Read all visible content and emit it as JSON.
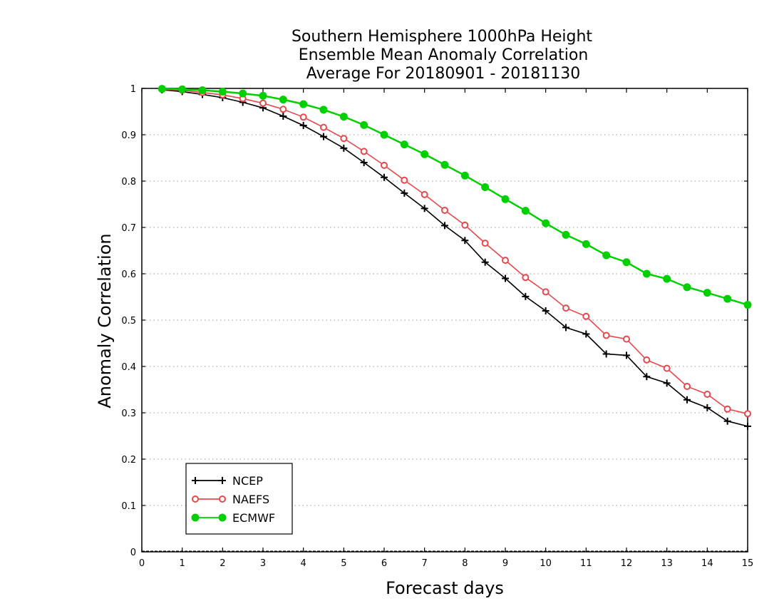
{
  "chart_data": {
    "type": "line",
    "title": [
      "Southern Hemisphere 1000hPa Height",
      "Ensemble Mean Anomaly Correlation",
      "Average For 20180901 - 20181130"
    ],
    "xlabel": "Forecast days",
    "ylabel": "Anomaly Correlation",
    "xlim": [
      0,
      15
    ],
    "ylim": [
      0,
      1
    ],
    "x_ticks": [
      "0",
      "1",
      "2",
      "3",
      "4",
      "5",
      "6",
      "7",
      "8",
      "9",
      "10",
      "11",
      "12",
      "13",
      "14",
      "15"
    ],
    "y_ticks": [
      "0",
      "0.1",
      "0.2",
      "0.3",
      "0.4",
      "0.5",
      "0.6",
      "0.7",
      "0.8",
      "0.9",
      "1"
    ],
    "grid": "horizontal dotted",
    "legend_position": "bottom-left",
    "x": [
      0.5,
      1,
      1.5,
      2,
      2.5,
      3,
      3.5,
      4,
      4.5,
      5,
      5.5,
      6,
      6.5,
      7,
      7.5,
      8,
      8.5,
      9,
      9.5,
      10,
      10.5,
      11,
      11.5,
      12,
      12.5,
      13,
      13.5,
      14,
      14.5,
      15
    ],
    "series": [
      {
        "name": "NCEP",
        "color": "#000000",
        "marker": "plus",
        "values": [
          0.997,
          0.993,
          0.987,
          0.98,
          0.97,
          0.958,
          0.94,
          0.92,
          0.896,
          0.871,
          0.84,
          0.808,
          0.774,
          0.741,
          0.704,
          0.672,
          0.625,
          0.59,
          0.551,
          0.52,
          0.484,
          0.47,
          0.427,
          0.424,
          0.378,
          0.364,
          0.328,
          0.311,
          0.282,
          0.271
        ]
      },
      {
        "name": "NAEFS",
        "color": "#e8474c",
        "marker": "open-circle",
        "values": [
          0.998,
          0.996,
          0.991,
          0.986,
          0.978,
          0.968,
          0.955,
          0.938,
          0.916,
          0.892,
          0.864,
          0.834,
          0.802,
          0.771,
          0.737,
          0.705,
          0.666,
          0.629,
          0.592,
          0.561,
          0.526,
          0.508,
          0.467,
          0.459,
          0.414,
          0.396,
          0.357,
          0.34,
          0.308,
          0.298
        ]
      },
      {
        "name": "ECMWF",
        "color": "#00d000",
        "marker": "filled-circle",
        "values": [
          0.999,
          0.998,
          0.996,
          0.993,
          0.989,
          0.984,
          0.976,
          0.966,
          0.954,
          0.939,
          0.921,
          0.9,
          0.879,
          0.858,
          0.835,
          0.812,
          0.787,
          0.761,
          0.736,
          0.709,
          0.684,
          0.664,
          0.64,
          0.625,
          0.6,
          0.589,
          0.571,
          0.559,
          0.546,
          0.533
        ]
      }
    ]
  }
}
